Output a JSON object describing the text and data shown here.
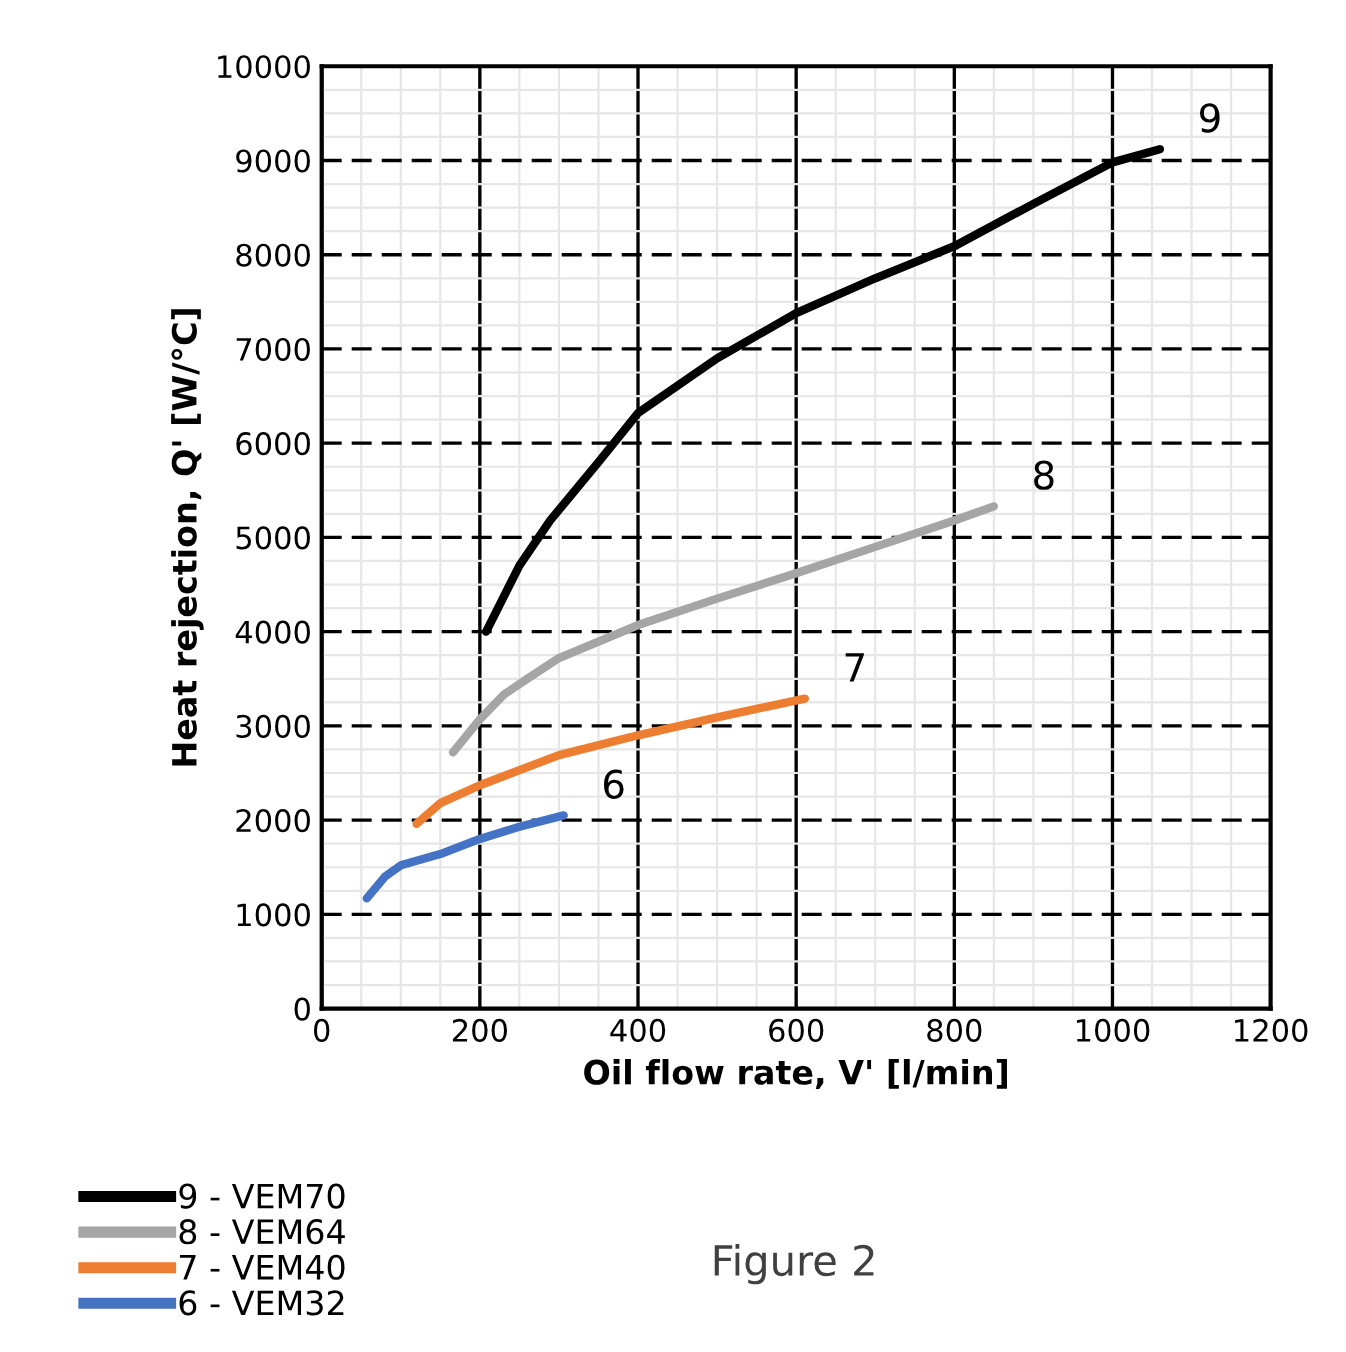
{
  "chart_data": {
    "type": "line",
    "xlabel": "Oil flow rate, V' [l/min]",
    "ylabel": "Heat rejection, Q' [W/°C]",
    "xlim": [
      0,
      1200
    ],
    "xticks": [
      0,
      200,
      400,
      600,
      800,
      1000,
      1200
    ],
    "ylim": [
      0,
      10000
    ],
    "yticks": [
      0,
      1000,
      2000,
      3000,
      4000,
      5000,
      6000,
      7000,
      8000,
      9000,
      10000
    ],
    "grid": true,
    "legend": "bottom left",
    "marker": "none",
    "line_style": "solid",
    "series": [
      {
        "name": "9 - VEM70",
        "color": "#000000",
        "x": [
          208,
          250,
          289,
          350,
          400,
          500,
          600,
          700,
          800,
          900,
          1000,
          1060
        ],
        "values": [
          4000,
          4700,
          5180,
          5800,
          6320,
          6900,
          7380,
          7750,
          8090,
          8540,
          8980,
          9120
        ]
      },
      {
        "name": "8 - VEM64",
        "color": "#a5a5a5",
        "x": [
          166,
          200,
          230,
          260,
          300,
          400,
          500,
          600,
          700,
          800,
          850
        ],
        "values": [
          2720,
          3070,
          3330,
          3500,
          3720,
          4070,
          4350,
          4620,
          4900,
          5180,
          5330
        ]
      },
      {
        "name": "7 - VEM40",
        "color": "#ed7d31",
        "x": [
          120,
          150,
          200,
          300,
          400,
          500,
          611
        ],
        "values": [
          1960,
          2180,
          2370,
          2690,
          2900,
          3090,
          3290
        ]
      },
      {
        "name": "6 - VEM32",
        "color": "#4472c4",
        "x": [
          57,
          80,
          100,
          150,
          200,
          250,
          306
        ],
        "values": [
          1170,
          1400,
          1520,
          1640,
          1800,
          1930,
          2050
        ]
      }
    ],
    "annotations": [
      "9",
      "8",
      "7",
      "6",
      "Figure 2"
    ]
  }
}
